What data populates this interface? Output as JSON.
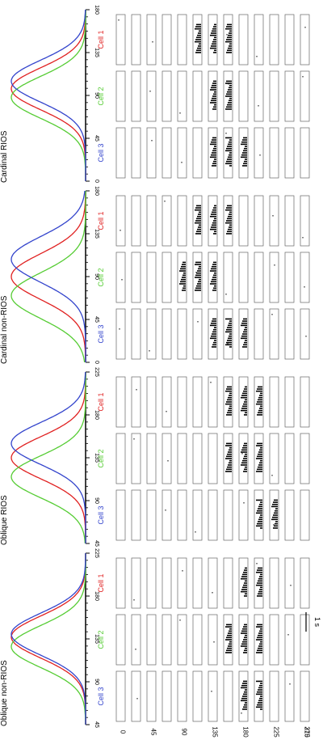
{
  "panel_titles": [
    "Cardinal RIOS",
    "Cardinal non-RIOS",
    "Oblique RIOS",
    "Oblique non-RIOS"
  ],
  "cell_labels": [
    "Cell 1",
    "Cell 2",
    "Cell 3"
  ],
  "cell_colors": [
    "#e02020",
    "#55cc33",
    "#3344cc"
  ],
  "row_axis_labels": [
    "0",
    "45",
    "90",
    "135",
    "180",
    "225",
    "270",
    "315"
  ],
  "scale_bar_label": "1 s",
  "chart_data": [
    {
      "type": "line",
      "title": "Cardinal RIOS",
      "x_ticks": [
        "0",
        "45",
        "90",
        "135",
        "180"
      ],
      "xlim": [
        0,
        180
      ],
      "series": [
        {
          "name": "Cell 1",
          "color": "#e02020",
          "peak": 97,
          "width": 22
        },
        {
          "name": "Cell 2",
          "color": "#55cc33",
          "peak": 88,
          "width": 22
        },
        {
          "name": "Cell 3",
          "color": "#3344cc",
          "peak": 105,
          "width": 22
        }
      ],
      "raster_rows_with_activity": [
        {
          "cell": "Cell 1",
          "rows": [
            5,
            6,
            7
          ]
        },
        {
          "cell": "Cell 2",
          "rows": [
            6,
            7
          ]
        },
        {
          "cell": "Cell 3",
          "rows": [
            6,
            7,
            8
          ]
        }
      ]
    },
    {
      "type": "line",
      "title": "Cardinal non-RIOS",
      "x_ticks": [
        "0",
        "45",
        "90",
        "135",
        "180"
      ],
      "xlim": [
        0,
        180
      ],
      "series": [
        {
          "name": "Cell 1",
          "color": "#e02020",
          "peak": 90,
          "width": 24
        },
        {
          "name": "Cell 2",
          "color": "#55cc33",
          "peak": 70,
          "width": 24
        },
        {
          "name": "Cell 3",
          "color": "#3344cc",
          "peak": 108,
          "width": 24
        }
      ],
      "raster_rows_with_activity": [
        {
          "cell": "Cell 1",
          "rows": [
            5,
            6,
            7,
            16
          ]
        },
        {
          "cell": "Cell 2",
          "rows": [
            4,
            5,
            6
          ]
        },
        {
          "cell": "Cell 3",
          "rows": [
            6,
            7,
            8
          ]
        }
      ]
    },
    {
      "type": "line",
      "title": "Oblique RIOS",
      "x_ticks": [
        "45",
        "90",
        "135",
        "180",
        "225"
      ],
      "xlim": [
        45,
        225
      ],
      "series": [
        {
          "name": "Cell 1",
          "color": "#e02020",
          "peak": 135,
          "width": 22
        },
        {
          "name": "Cell 2",
          "color": "#55cc33",
          "peak": 115,
          "width": 22
        },
        {
          "name": "Cell 3",
          "color": "#3344cc",
          "peak": 150,
          "width": 22
        }
      ],
      "raster_rows_with_activity": [
        {
          "cell": "Cell 1",
          "rows": [
            7,
            8,
            9
          ]
        },
        {
          "cell": "Cell 2",
          "rows": [
            7,
            8,
            9
          ]
        },
        {
          "cell": "Cell 3",
          "rows": [
            9,
            10
          ]
        }
      ]
    },
    {
      "type": "line",
      "title": "Oblique non-RIOS",
      "x_ticks": [
        "45",
        "90",
        "135",
        "180",
        "225"
      ],
      "xlim": [
        45,
        225
      ],
      "series": [
        {
          "name": "Cell 1",
          "color": "#e02020",
          "peak": 137,
          "width": 22
        },
        {
          "name": "Cell 2",
          "color": "#55cc33",
          "peak": 127,
          "width": 22
        },
        {
          "name": "Cell 3",
          "color": "#3344cc",
          "peak": 140,
          "width": 22
        }
      ],
      "raster_rows_with_activity": [
        {
          "cell": "Cell 1",
          "rows": [
            8,
            9
          ]
        },
        {
          "cell": "Cell 2",
          "rows": [
            7,
            8,
            9
          ]
        },
        {
          "cell": "Cell 3",
          "rows": [
            8,
            9
          ]
        }
      ]
    }
  ]
}
